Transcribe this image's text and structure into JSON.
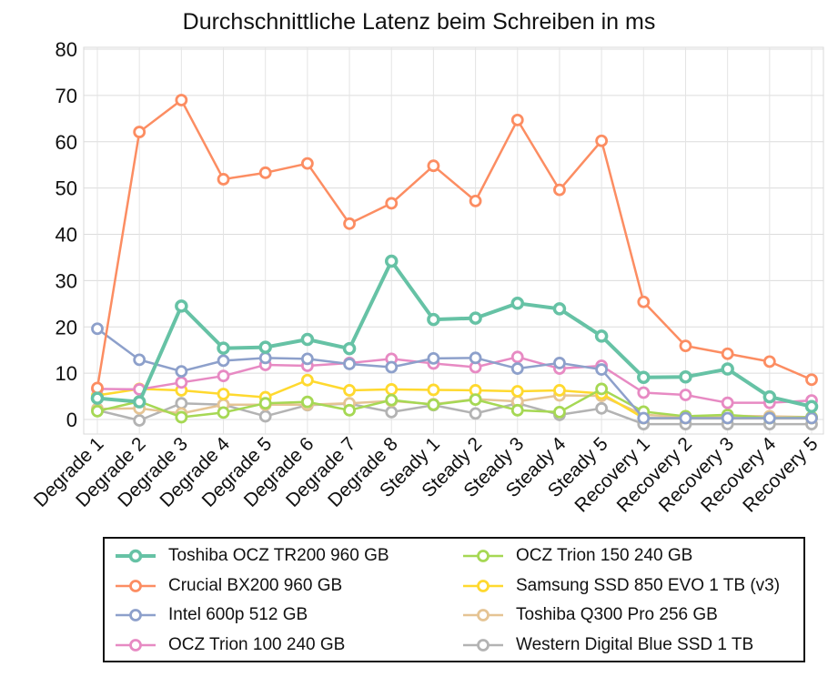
{
  "chart_data": {
    "type": "line",
    "title": "Durchschnittliche Latenz beim Schreiben in ms",
    "xlabel": "",
    "ylabel": "",
    "ylim": [
      0,
      80
    ],
    "yticks": [
      "0",
      "10",
      "20",
      "30",
      "40",
      "50",
      "60",
      "70",
      "80"
    ],
    "grid": true,
    "legend_position": "bottom",
    "categories": [
      "Degrade 1",
      "Degrade 2",
      "Degrade 3",
      "Degrade 4",
      "Degrade 5",
      "Degrade 6",
      "Degrade 7",
      "Degrade 8",
      "Steady 1",
      "Steady 2",
      "Steady 3",
      "Steady 4",
      "Steady 5",
      "Recovery 1",
      "Recovery 2",
      "Recovery 3",
      "Recovery 4",
      "Recovery 5"
    ],
    "series": [
      {
        "name": "Toshiba OCZ TR200 960 GB",
        "color": "#66c2a5",
        "emphasis": true,
        "values": [
          4.6,
          3.8,
          24.5,
          15.4,
          15.6,
          17.3,
          15.3,
          34.2,
          21.6,
          21.9,
          25.1,
          23.9,
          18.0,
          9.1,
          9.2,
          10.9,
          4.9,
          2.8
        ]
      },
      {
        "name": "Crucial BX200 960 GB",
        "color": "#fc8d62",
        "values": [
          6.8,
          62.1,
          69.0,
          51.9,
          53.3,
          55.3,
          42.3,
          46.7,
          54.8,
          47.2,
          64.7,
          49.6,
          60.2,
          25.4,
          15.9,
          14.2,
          12.5,
          8.6
        ]
      },
      {
        "name": "Intel 600p 512 GB",
        "color": "#8da0cb",
        "values": [
          19.6,
          12.9,
          10.4,
          12.7,
          13.3,
          13.1,
          12.0,
          11.3,
          13.2,
          13.3,
          11.0,
          12.2,
          10.8,
          0.3,
          0.3,
          0.3,
          0.3,
          0.3
        ]
      },
      {
        "name": "OCZ Trion 100 240 GB",
        "color": "#e78ac3",
        "values": [
          6.6,
          6.5,
          8.0,
          9.4,
          11.8,
          11.6,
          12.2,
          13.1,
          12.1,
          11.3,
          13.5,
          11.0,
          11.6,
          5.8,
          5.3,
          3.6,
          3.6,
          4.1
        ]
      },
      {
        "name": "OCZ Trion 150 240 GB",
        "color": "#a6d854",
        "values": [
          1.8,
          3.9,
          0.5,
          1.5,
          3.5,
          3.8,
          2.0,
          4.2,
          3.2,
          4.3,
          2.0,
          1.6,
          6.6,
          1.7,
          0.7,
          1.0,
          0.3,
          0.5
        ]
      },
      {
        "name": "Samsung SSD 850 EVO 1 TB (v3)",
        "color": "#ffd92f",
        "values": [
          5.2,
          6.6,
          6.3,
          5.5,
          4.8,
          8.5,
          6.3,
          6.5,
          6.4,
          6.3,
          6.1,
          6.3,
          5.6,
          0.3,
          0.3,
          0.3,
          0.3,
          0.3
        ]
      },
      {
        "name": "Toshiba Q300 Pro 256 GB",
        "color": "#e5c494",
        "values": [
          2.3,
          2.4,
          1.3,
          3.2,
          3.2,
          3.2,
          3.5,
          4.0,
          3.3,
          4.4,
          3.9,
          5.2,
          5.1,
          1.0,
          0.6,
          0.8,
          0.7,
          0.5
        ]
      },
      {
        "name": "Western Digital Blue SSD 1 TB",
        "color": "#b3b3b3",
        "values": [
          2.0,
          -0.2,
          3.5,
          3.2,
          0.7,
          3.1,
          3.4,
          1.6,
          3.1,
          1.3,
          3.5,
          1.0,
          2.4,
          -1.0,
          -1.0,
          -1.0,
          -1.0,
          -1.0
        ]
      }
    ]
  }
}
